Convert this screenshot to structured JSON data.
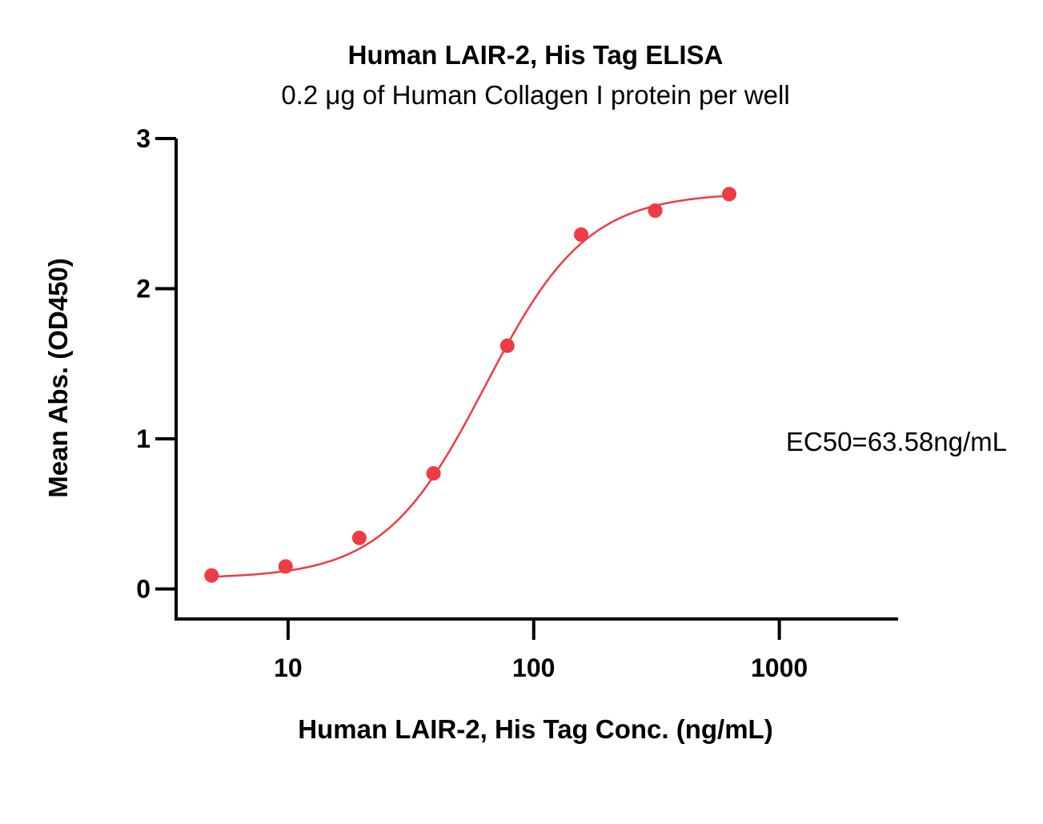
{
  "chart_data": {
    "type": "scatter",
    "title": "Human LAIR-2, His Tag ELISA",
    "subtitle": "0.2 μg of Human Collagen I protein per well",
    "xlabel": "Human LAIR-2, His Tag Conc. (ng/mL)",
    "ylabel": "Mean Abs. (OD450)",
    "x_scale": "log",
    "xlim": [
      3.5,
      3000
    ],
    "ylim": [
      -0.2,
      3
    ],
    "x_ticks": [
      10,
      100,
      1000
    ],
    "x_tick_labels": [
      "10",
      "100",
      "1000"
    ],
    "y_ticks": [
      0,
      1,
      2,
      3
    ],
    "y_tick_labels": [
      "0",
      "1",
      "2",
      "3"
    ],
    "grid": false,
    "series": [
      {
        "x": [
          4.88,
          9.77,
          19.5,
          39.1,
          78.1,
          156,
          312.5,
          625
        ],
        "y": [
          0.09,
          0.15,
          0.34,
          0.77,
          1.62,
          2.36,
          2.52,
          2.63
        ],
        "color": "#ef3b45",
        "fit": "4PL"
      }
    ],
    "fit_params": {
      "bottom": 0.07,
      "top": 2.64,
      "ec50": 63.58,
      "hill": 2.1
    },
    "annotations": [
      {
        "text": "EC50=63.58ng/mL"
      }
    ]
  }
}
